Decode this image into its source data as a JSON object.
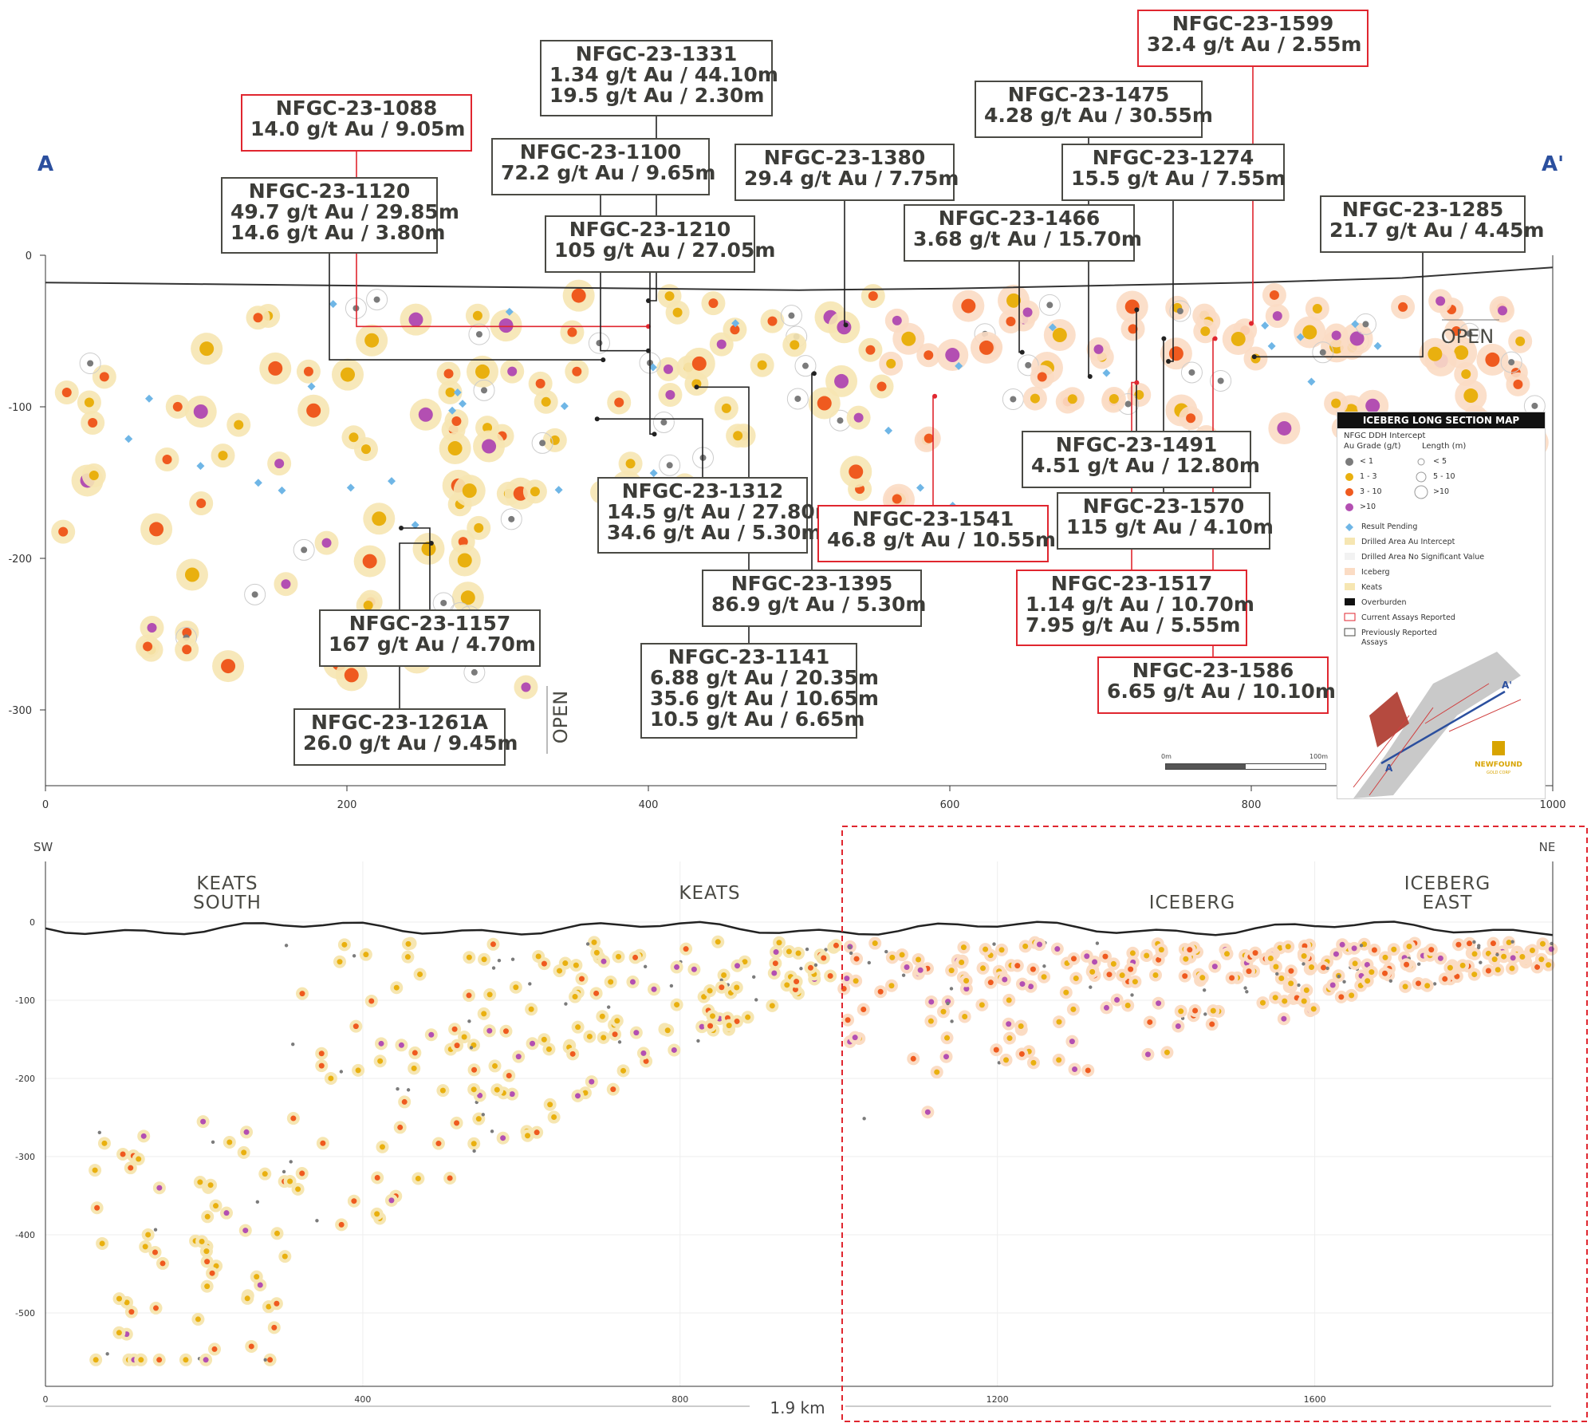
{
  "colors": {
    "lt1": "#7b7b7b",
    "g1_3": "#e9b00f",
    "g3_10": "#ef5a1f",
    "gt10": "#b34fb2",
    "halo_keats": "#f6e6b2",
    "halo_iceberg": "#fbdcc4",
    "pending": "#6fb6e6",
    "overburden": "#222222",
    "red": "#e0262f",
    "box": "#4a4a44",
    "axis_label_blue": "#2b4f9e"
  },
  "chart_data": [
    {
      "type": "scatter",
      "name": "Iceberg long section A–A'",
      "section_end_labels": [
        "A",
        "A'"
      ],
      "xlim": [
        0,
        1000
      ],
      "ylim": [
        -350,
        0
      ],
      "x_ticks": [
        0,
        200,
        400,
        600,
        800,
        1000
      ],
      "y_ticks": [
        0,
        -100,
        -200,
        -300
      ],
      "open_labels": [
        "OPEN",
        "OPEN"
      ],
      "surface": [
        [
          0,
          -18
        ],
        [
          100,
          -19
        ],
        [
          200,
          -20
        ],
        [
          300,
          -21
        ],
        [
          400,
          -22
        ],
        [
          500,
          -23
        ],
        [
          600,
          -22
        ],
        [
          700,
          -20
        ],
        [
          800,
          -18
        ],
        [
          900,
          -15
        ],
        [
          1000,
          -8
        ]
      ],
      "callouts": [
        {
          "id": "NFGC-23-1088",
          "lines": [
            "NFGC-23-1088",
            "14.0 g/t Au / 9.05m"
          ],
          "current": true,
          "target": [
            400,
            -47
          ]
        },
        {
          "id": "NFGC-23-1120",
          "lines": [
            "NFGC-23-1120",
            "49.7 g/t Au / 29.85m",
            "14.6 g/t Au / 3.80m"
          ],
          "current": false,
          "target": [
            370,
            -69
          ]
        },
        {
          "id": "NFGC-23-1331",
          "lines": [
            "NFGC-23-1331",
            "1.34 g/t Au / 44.10m",
            "19.5 g/t Au / 2.30m"
          ],
          "current": false,
          "target": [
            400,
            -30
          ]
        },
        {
          "id": "NFGC-23-1100",
          "lines": [
            "NFGC-23-1100",
            "72.2 g/t Au / 9.65m"
          ],
          "current": false,
          "target": [
            400,
            -63
          ]
        },
        {
          "id": "NFGC-23-1210",
          "lines": [
            "NFGC-23-1210",
            "105 g/t Au / 27.05m"
          ],
          "current": false,
          "target": [
            404,
            -118
          ]
        },
        {
          "id": "NFGC-23-1380",
          "lines": [
            "NFGC-23-1380",
            "29.4 g/t Au / 7.75m"
          ],
          "current": false,
          "target": [
            531,
            -46
          ]
        },
        {
          "id": "NFGC-23-1475",
          "lines": [
            "NFGC-23-1475",
            "4.28 g/t Au / 30.55m"
          ],
          "current": false,
          "target": [
            693,
            -80
          ]
        },
        {
          "id": "NFGC-23-1274",
          "lines": [
            "NFGC-23-1274",
            "15.5 g/t Au / 7.55m"
          ],
          "current": false,
          "target": [
            745,
            -70
          ]
        },
        {
          "id": "NFGC-23-1466",
          "lines": [
            "NFGC-23-1466",
            "3.68 g/t Au / 15.70m"
          ],
          "current": false,
          "target": [
            648,
            -64
          ]
        },
        {
          "id": "NFGC-23-1599",
          "lines": [
            "NFGC-23-1599",
            "32.4 g/t Au / 2.55m"
          ],
          "current": true,
          "target": [
            800,
            -45
          ]
        },
        {
          "id": "NFGC-23-1285",
          "lines": [
            "NFGC-23-1285",
            "21.7 g/t Au / 4.45m"
          ],
          "current": false,
          "target": [
            802,
            -67
          ]
        },
        {
          "id": "NFGC-23-1312",
          "lines": [
            "NFGC-23-1312",
            "14.5 g/t Au / 27.80m",
            "34.6 g/t Au / 5.30m"
          ],
          "current": false,
          "target": [
            366,
            -108
          ]
        },
        {
          "id": "NFGC-23-1541",
          "lines": [
            "NFGC-23-1541",
            "46.8 g/t Au / 10.55m"
          ],
          "current": true,
          "target": [
            590,
            -93
          ]
        },
        {
          "id": "NFGC-23-1491",
          "lines": [
            "NFGC-23-1491",
            "4.51 g/t Au / 12.80m"
          ],
          "current": false,
          "target": [
            724,
            -36
          ]
        },
        {
          "id": "NFGC-23-1570",
          "lines": [
            "NFGC-23-1570",
            "115 g/t Au / 4.10m"
          ],
          "current": false,
          "target": [
            742,
            -55
          ]
        },
        {
          "id": "NFGC-23-1517",
          "lines": [
            "NFGC-23-1517",
            "1.14 g/t Au / 10.70m",
            "7.95 g/t Au / 5.55m"
          ],
          "current": true,
          "target": [
            724,
            -84
          ]
        },
        {
          "id": "NFGC-23-1586",
          "lines": [
            "NFGC-23-1586",
            "6.65 g/t Au / 10.10m"
          ],
          "current": true,
          "target": [
            776,
            -55
          ]
        },
        {
          "id": "NFGC-23-1395",
          "lines": [
            "NFGC-23-1395",
            "86.9 g/t Au / 5.30m"
          ],
          "current": false,
          "target": [
            510,
            -78
          ]
        },
        {
          "id": "NFGC-23-1141",
          "lines": [
            "NFGC-23-1141",
            "6.88 g/t Au / 20.35m",
            "35.6 g/t Au / 10.65m",
            "10.5 g/t Au / 6.65m"
          ],
          "current": false,
          "target": [
            432,
            -87
          ]
        },
        {
          "id": "NFGC-23-1157",
          "lines": [
            "NFGC-23-1157",
            "167 g/t  Au / 4.70m"
          ],
          "current": false,
          "target": [
            236,
            -180
          ]
        },
        {
          "id": "NFGC-23-1261A",
          "lines": [
            "NFGC-23-1261A",
            "26.0 g/t Au / 9.45m"
          ],
          "current": false,
          "target": [
            256,
            -190
          ]
        }
      ]
    },
    {
      "type": "scatter",
      "name": "Full long section SW–NE",
      "direction_labels": [
        "SW",
        "NE"
      ],
      "xlim": [
        0,
        1900
      ],
      "ylim": [
        -580,
        0
      ],
      "x_ticks": [
        0,
        400,
        800,
        1200,
        1600
      ],
      "y_ticks": [
        0,
        -100,
        -200,
        -300,
        -400,
        -500
      ],
      "zones": [
        {
          "label": [
            "KEATS",
            "SOUTH"
          ],
          "x": 230
        },
        {
          "label": [
            "KEATS"
          ],
          "x": 840
        },
        {
          "label": [
            "ICEBERG"
          ],
          "x": 1450
        },
        {
          "label": [
            "ICEBERG",
            "EAST"
          ],
          "x": 1770
        }
      ],
      "scale_text": "1.9 km",
      "highlight_box_x": [
        1010,
        1900
      ]
    }
  ],
  "legend": {
    "title": "ICEBERG LONG SECTION MAP",
    "subtitle": "NFGC DDH Intercept",
    "grade_header": "Au Grade (g/t)",
    "length_header": "Length (m)",
    "grades": [
      {
        "label": "< 1",
        "color": "#7b7b7b"
      },
      {
        "label": "1 - 3",
        "color": "#e9b00f"
      },
      {
        "label": "3 - 10",
        "color": "#ef5a1f"
      },
      {
        "label": ">10",
        "color": "#b34fb2"
      }
    ],
    "lengths": [
      "< 5",
      "5 - 10",
      ">10"
    ],
    "items": [
      {
        "label": "Result Pending",
        "swatch": "diamond",
        "color": "#6fb6e6"
      },
      {
        "label": "Drilled Area Au Intercept",
        "swatch": "fill",
        "color": "#f6e6b2"
      },
      {
        "label": "Drilled Area No Significant Value",
        "swatch": "fill",
        "color": "#f2f2f2"
      },
      {
        "label": "Iceberg",
        "swatch": "fill",
        "color": "#fbdcc4"
      },
      {
        "label": "Keats",
        "swatch": "fill",
        "color": "#f6e6b2"
      },
      {
        "label": "Overburden",
        "swatch": "fill",
        "color": "#111111"
      },
      {
        "label": "Current Assays Reported",
        "swatch": "box",
        "color": "#e0262f"
      },
      {
        "label": "Previously Reported",
        "swatch": "box",
        "color": "#4a4a44"
      }
    ],
    "assays_label": "Assays",
    "scale_start": "0m",
    "scale_end": "100m",
    "inset_labels": [
      "A",
      "A'"
    ],
    "logo_line1": "NEWFOUND",
    "logo_line2": "GOLD CORP"
  }
}
